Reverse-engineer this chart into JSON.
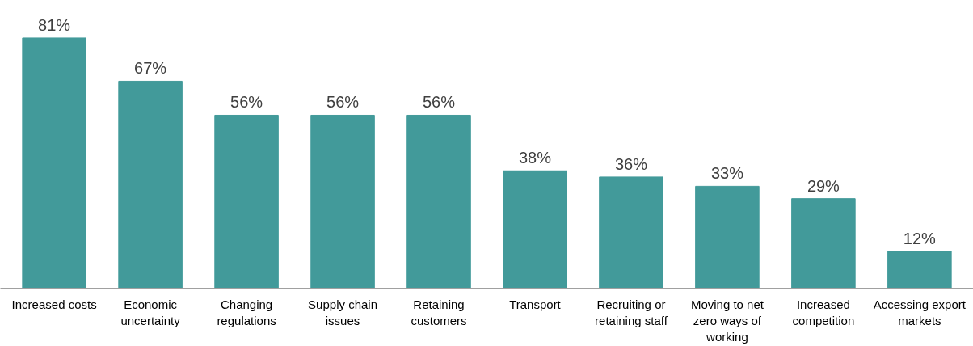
{
  "chart_data": {
    "type": "bar",
    "categories": [
      "Increased costs",
      "Economic uncertainty",
      "Changing regulations",
      "Supply chain issues",
      "Retaining customers",
      "Transport",
      "Recruiting or retaining staff",
      "Moving to net zero ways of working",
      "Increased competition",
      "Accessing export markets"
    ],
    "values": [
      81,
      67,
      56,
      56,
      56,
      38,
      36,
      33,
      29,
      12
    ],
    "value_labels": [
      "81%",
      "67%",
      "56%",
      "56%",
      "56%",
      "38%",
      "36%",
      "33%",
      "29%",
      "12%"
    ],
    "color": "#429a9a",
    "tick_labels": "x",
    "grid": false
  }
}
